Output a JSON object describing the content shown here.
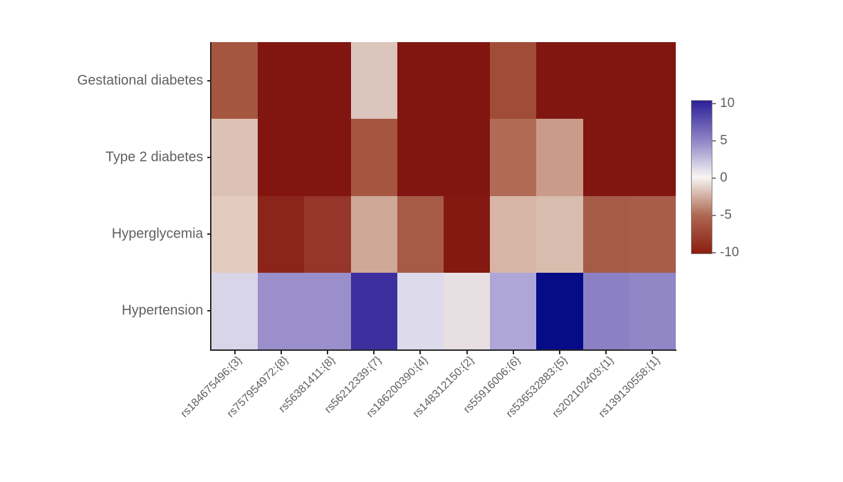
{
  "chart_data": {
    "type": "heatmap",
    "title": "",
    "xlabel": "",
    "ylabel": "",
    "rows": [
      "Gestational diabetes",
      "Type 2 diabetes",
      "Hyperglycemia",
      "Hypertension"
    ],
    "columns": [
      "rs184675496:{3}",
      "rs757954972:{8}",
      "rs56381411:{8}",
      "rs56212339:{7}",
      "rs186200390:{4}",
      "rs148312150:{2}",
      "rs55916006:{6}",
      "rs536532883:{5}",
      "rs202102403:{1}",
      "rs139130558:{1}"
    ],
    "values": [
      [
        -7.0,
        -10.0,
        -10.0,
        -2.5,
        -10.0,
        -10.0,
        -7.5,
        -10.0,
        -10.0,
        -10.0
      ],
      [
        -2.5,
        -10.0,
        -10.0,
        -7.0,
        -10.0,
        -10.0,
        -6.5,
        -4.5,
        -10.0,
        -10.0
      ],
      [
        -2.0,
        -9.5,
        -9.0,
        -4.0,
        -7.0,
        -10.0,
        -3.5,
        -3.0,
        -7.0,
        -7.0
      ],
      [
        2.0,
        4.5,
        4.5,
        8.5,
        1.5,
        -1.0,
        3.5,
        10.0,
        5.0,
        5.0
      ]
    ],
    "cell_colors": [
      [
        "#A5563F",
        "#811610",
        "#811610",
        "#DCC5BD",
        "#811610",
        "#811610",
        "#A14C38",
        "#811610",
        "#811610",
        "#811610"
      ],
      [
        "#DCC2B6",
        "#811610",
        "#811610",
        "#A65640",
        "#811610",
        "#811610",
        "#B06A55",
        "#CA9B8B",
        "#811610",
        "#811610"
      ],
      [
        "#E3CCBF",
        "#8B241A",
        "#96352A",
        "#CFA897",
        "#A65B47",
        "#831911",
        "#D6B5A6",
        "#D8BCAE",
        "#A65B48",
        "#A85D4B"
      ],
      [
        "#D8D5E9",
        "#9A8FCB",
        "#9A8FCB",
        "#3D2F9E",
        "#DDDAEC",
        "#E8DFE2",
        "#AFA6D8",
        "#060C86",
        "#8C80C4",
        "#9186C6"
      ]
    ],
    "colorbar": {
      "min": -10,
      "max": 10,
      "tick_values": [
        10,
        5,
        0,
        -5,
        -10
      ],
      "tick_labels": [
        "10",
        "5",
        "0",
        "-5",
        "-10"
      ],
      "gradient_stops": [
        "#2C2097 0%",
        "#8F84C6 26%",
        "#F8F5F3 50%",
        "#AE6852 75%",
        "#8B1D10 100%"
      ],
      "position": "right"
    },
    "grid": false,
    "legend": false,
    "x_tick_rotation_deg": 45
  },
  "colors": {
    "background": "#ffffff",
    "axis": "#262626",
    "label_text": "#5f5f5f",
    "colorbar_border": "#808080",
    "heat_negative_extreme": "#811610",
    "heat_positive_extreme": "#060C86",
    "heat_midpoint": "#F8F5F3"
  }
}
